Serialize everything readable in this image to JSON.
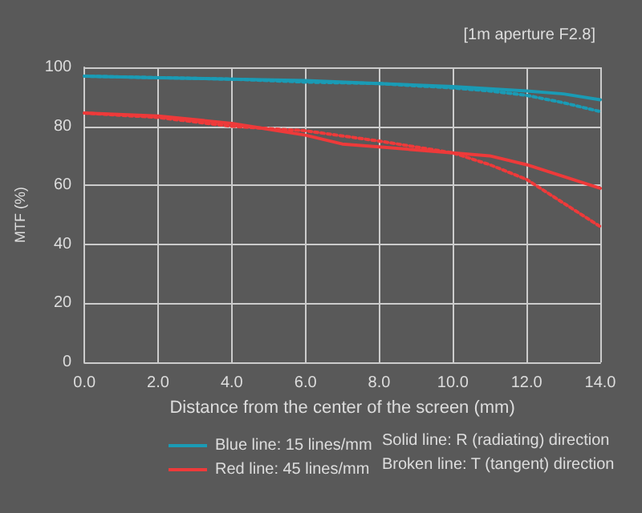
{
  "chart_data": {
    "type": "line",
    "title": "[1m aperture F2.8]",
    "xlabel": "Distance from the center of the screen (mm)",
    "ylabel": "MTF (%)",
    "xlim": [
      0,
      14
    ],
    "xticks": [
      {
        "value": 0,
        "label": "0.0"
      },
      {
        "value": 2,
        "label": "2.0"
      },
      {
        "value": 4,
        "label": "4.0"
      },
      {
        "value": 6,
        "label": "6.0"
      },
      {
        "value": 8,
        "label": "8.0"
      },
      {
        "value": 10,
        "label": "10.0"
      },
      {
        "value": 12,
        "label": "12.0"
      },
      {
        "value": 14,
        "label": "14.0"
      }
    ],
    "ylim": [
      0,
      100
    ],
    "yticks": [
      0,
      20,
      40,
      60,
      80,
      100
    ],
    "grid": true,
    "legend": "bottom",
    "marker": "none",
    "annotations": [
      "Solid line: R (radiating) direction",
      "Broken line: T (tangent) direction"
    ],
    "series": [
      {
        "name": "Blue line: 15 lines/mm",
        "color": "#1a9bb5",
        "line_style": "solid",
        "x": [
          0,
          2,
          4,
          6,
          8,
          10,
          12,
          13,
          14
        ],
        "values": [
          97,
          96.5,
          96,
          95.5,
          94.5,
          93.5,
          92,
          91,
          89
        ]
      },
      {
        "name": "Red line: 45 lines/mm",
        "color": "#ee3a3a",
        "line_style": "solid",
        "x": [
          0,
          2,
          4,
          5,
          6,
          7,
          8,
          10,
          11,
          12,
          13,
          14
        ],
        "values": [
          84.5,
          83.5,
          81,
          79,
          77,
          74,
          73,
          71,
          70,
          67,
          63,
          59
        ]
      },
      {
        "color": "#1a9bb5",
        "line_style": "dotted",
        "x": [
          0,
          2,
          4,
          6,
          8,
          10,
          11,
          12,
          13,
          14
        ],
        "values": [
          97,
          96.5,
          96,
          95,
          94.5,
          93,
          92,
          90.5,
          88,
          85
        ]
      },
      {
        "color": "#ee3a3a",
        "line_style": "dotted",
        "x": [
          0,
          2,
          4,
          6,
          8,
          10,
          11,
          12,
          13,
          14
        ],
        "values": [
          84.5,
          83,
          80,
          78.5,
          75,
          71,
          67,
          62,
          54,
          46
        ]
      }
    ]
  }
}
